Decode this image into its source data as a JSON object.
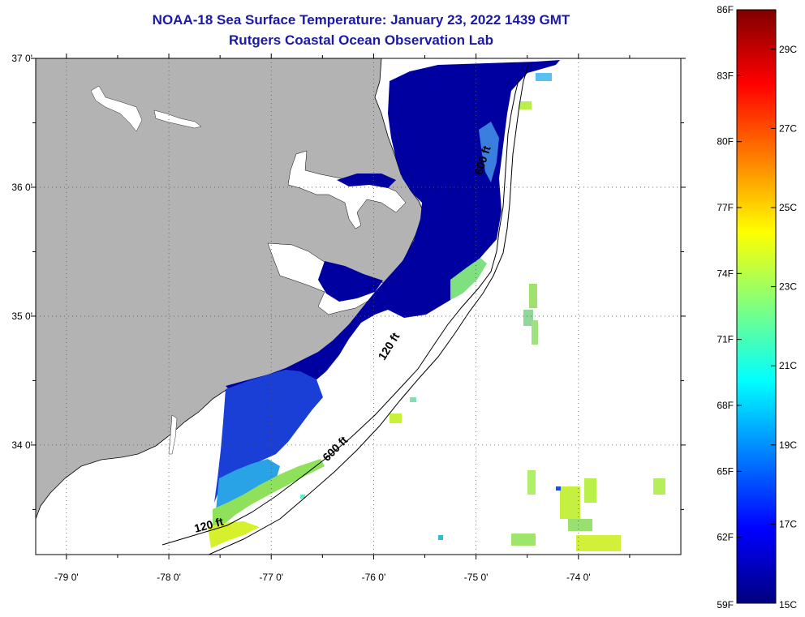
{
  "header": {
    "title": "NOAA-18 Sea Surface Temperature:  January 23, 2022 1439 GMT",
    "subtitle": "Rutgers Coastal Ocean Observation Lab"
  },
  "map": {
    "lon_range": [
      -79.3,
      -73.0
    ],
    "lat_range": [
      33.15,
      37.0
    ],
    "lon_ticks": [
      {
        "value": -79,
        "label": "-79 0'"
      },
      {
        "value": -78,
        "label": "-78 0'"
      },
      {
        "value": -77,
        "label": "-77 0'"
      },
      {
        "value": -76,
        "label": "-76 0'"
      },
      {
        "value": -75,
        "label": "-75 0'"
      },
      {
        "value": -74,
        "label": "-74 0'"
      }
    ],
    "lat_ticks": [
      {
        "value": 37,
        "label": "37 0'"
      },
      {
        "value": 36,
        "label": "36 0'"
      },
      {
        "value": 35,
        "label": "35 0'"
      },
      {
        "value": 34,
        "label": "34 0'"
      }
    ],
    "contour_labels": [
      {
        "text": "600 ft",
        "lon": -74.9,
        "lat": 36.2,
        "angle": -72
      },
      {
        "text": "120 ft",
        "lon": -75.82,
        "lat": 34.75,
        "angle": -58
      },
      {
        "text": "600 ft",
        "lon": -76.35,
        "lat": 33.95,
        "angle": -45
      },
      {
        "text": "120 ft",
        "lon": -77.6,
        "lat": 33.35,
        "angle": -15
      }
    ],
    "land_color": "#b3b3b3",
    "water_color": "#ffffff",
    "sst_cold_color": "#0000a0"
  },
  "colorbar": {
    "min_f": 59,
    "max_f": 86,
    "colors": [
      "#00007f",
      "#0000ff",
      "#007fff",
      "#00ffff",
      "#7fff7f",
      "#ffff00",
      "#ff7f00",
      "#ff0000",
      "#7f0000"
    ],
    "fahrenheit_labels": [
      "86F",
      "83F",
      "80F",
      "77F",
      "74F",
      "71F",
      "68F",
      "65F",
      "62F",
      "59F"
    ],
    "celsius_labels": [
      {
        "label": "29C",
        "value_f": 84.2
      },
      {
        "label": "27C",
        "value_f": 80.6
      },
      {
        "label": "25C",
        "value_f": 77.0
      },
      {
        "label": "23C",
        "value_f": 73.4
      },
      {
        "label": "21C",
        "value_f": 69.8
      },
      {
        "label": "19C",
        "value_f": 66.2
      },
      {
        "label": "17C",
        "value_f": 62.6
      },
      {
        "label": "15C",
        "value_f": 59.0
      }
    ]
  }
}
